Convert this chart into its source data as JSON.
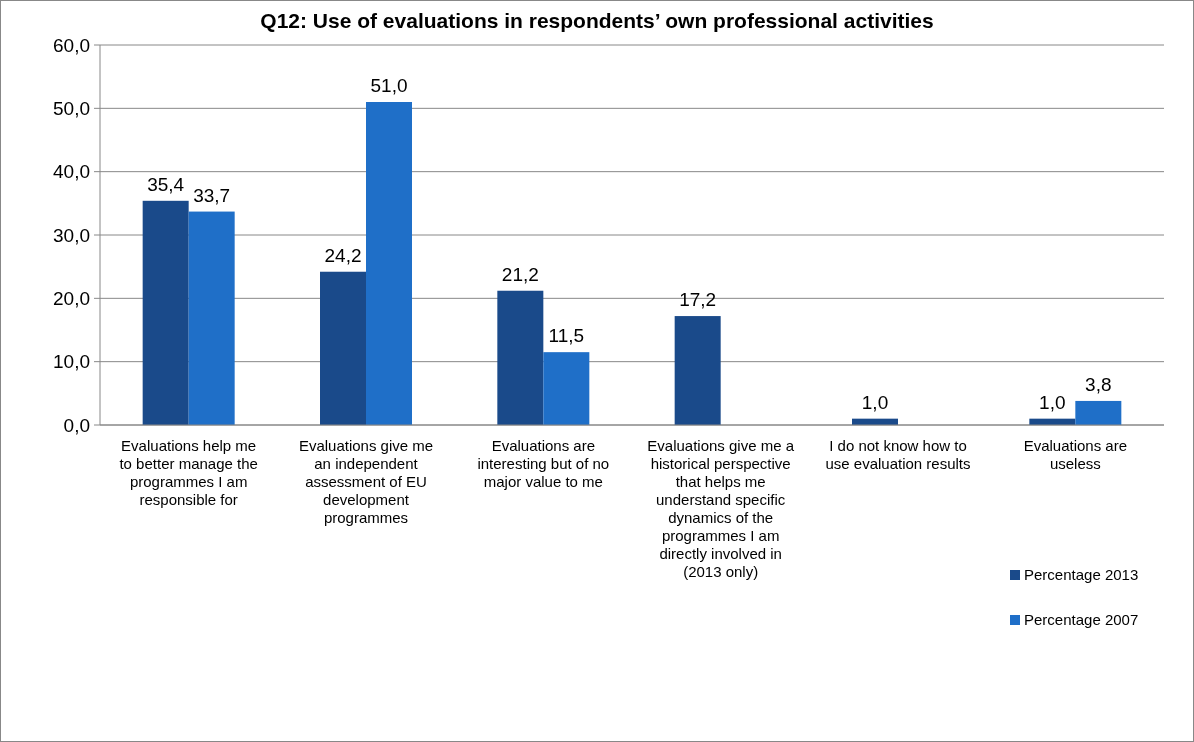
{
  "chart_data": {
    "type": "bar",
    "title": "Q12: Use of evaluations in respondents’ own professional activities",
    "categories": [
      "Evaluations help me to better manage the programmes I am responsible for",
      "Evaluations give me an independent assessment of EU development programmes",
      "Evaluations are interesting but of no major value to me",
      "Evaluations give me a historical perspective that helps me understand specific dynamics of the programmes I am directly involved in (2013 only)",
      "I do not know how to use evaluation results",
      "Evaluations are useless"
    ],
    "series": [
      {
        "name": "Percentage 2013",
        "color": "#1a4a8a",
        "values": [
          35.4,
          24.2,
          21.2,
          17.2,
          1.0,
          1.0
        ],
        "value_labels": [
          "35,4",
          "24,2",
          "21,2",
          "17,2",
          "1,0",
          "1,0"
        ]
      },
      {
        "name": "Percentage 2007",
        "color": "#1f6fc8",
        "values": [
          33.7,
          51.0,
          11.5,
          null,
          null,
          3.8
        ],
        "value_labels": [
          "33,7",
          "51,0",
          "11,5",
          null,
          null,
          "3,8"
        ]
      }
    ],
    "ylim": [
      0,
      60
    ],
    "yticks": [
      {
        "value": 0,
        "label": "0,0"
      },
      {
        "value": 10,
        "label": "10,0"
      },
      {
        "value": 20,
        "label": "20,0"
      },
      {
        "value": 30,
        "label": "30,0"
      },
      {
        "value": 40,
        "label": "40,0"
      },
      {
        "value": 50,
        "label": "50,0"
      },
      {
        "value": 60,
        "label": "60,0"
      }
    ],
    "grid": "y",
    "legend": "right"
  }
}
